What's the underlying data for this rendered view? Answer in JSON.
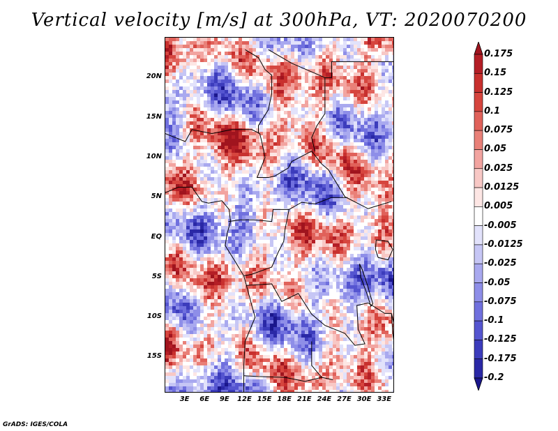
{
  "title": "Vertical velocity [m/s] at 300hPa, VT: 2020070200",
  "footer": "GrADS: IGES/COLA",
  "map": {
    "lat_labels": [
      "20N",
      "15N",
      "10N",
      "5N",
      "EQ",
      "5S",
      "10S",
      "15S"
    ],
    "lon_labels": [
      "3E",
      "6E",
      "9E",
      "12E",
      "15E",
      "18E",
      "21E",
      "24E",
      "27E",
      "30E",
      "33E"
    ],
    "lat_range": [
      -19.5,
      25
    ],
    "lon_range": [
      0,
      34.5
    ],
    "field": "vertical velocity",
    "level": "300hPa",
    "units": "m/s"
  },
  "colorbar": {
    "levels": [
      "0.175",
      "0.15",
      "0.125",
      "0.1",
      "0.075",
      "0.05",
      "0.025",
      "0.0125",
      "0.005",
      "-0.005",
      "-0.0125",
      "-0.025",
      "-0.05",
      "-0.075",
      "-0.1",
      "-0.125",
      "-0.175",
      "-0.2"
    ],
    "colors": [
      "#a0141e",
      "#b41e26",
      "#c8302e",
      "#d6453e",
      "#e0615a",
      "#e98078",
      "#f2a4a0",
      "#f8c8c5",
      "#fde6e4",
      "#ffffff",
      "#e2e2fb",
      "#c6c6f5",
      "#a9a9ef",
      "#8e8ee8",
      "#7070de",
      "#5555d0",
      "#3c3cbc",
      "#2a28a6",
      "#1a168c"
    ]
  }
}
